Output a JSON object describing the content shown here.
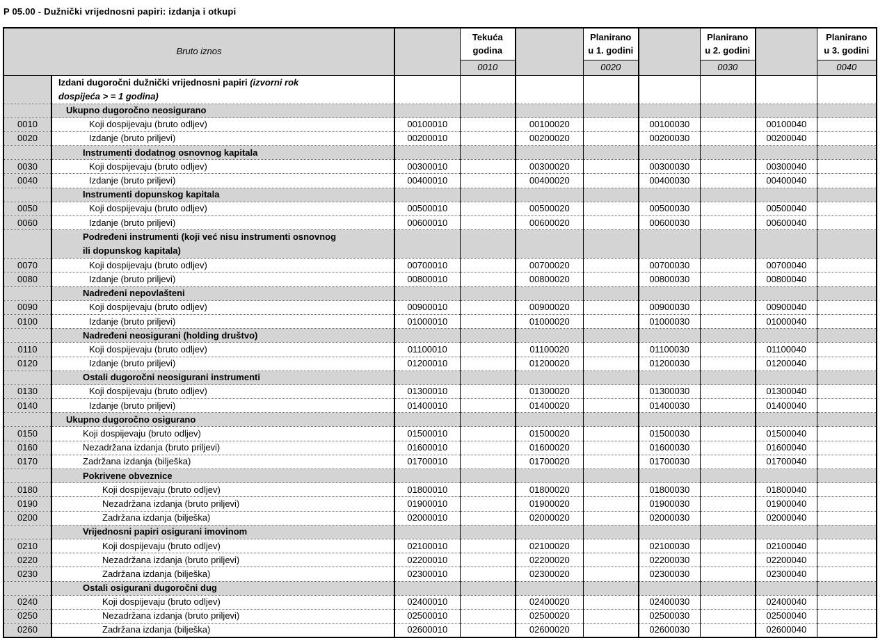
{
  "title": "P 05.00 - Dužnički vrijednosni papiri: izdanja i otkupi",
  "header": {
    "corner_label": "Bruto iznos",
    "columns": [
      {
        "line1": "Tekuća",
        "line2": "godina",
        "code": "0010"
      },
      {
        "line1": "Planirano",
        "line2": "u 1. godini",
        "code": "0020"
      },
      {
        "line1": "Planirano",
        "line2": "u 2. godini",
        "code": "0030"
      },
      {
        "line1": "Planirano",
        "line2": "u 3. godini",
        "code": "0040"
      }
    ]
  },
  "colors": {
    "shade": "#d4d4d4",
    "border": "#000000",
    "background": "#ffffff"
  },
  "rows": [
    {
      "type": "section",
      "code": "",
      "indent": 1,
      "lines": 2,
      "shaded": false,
      "label": "Izdani dugoročni dužnički vrijednosni papiri ",
      "label_italic": "(izvorni rok",
      "label2_italic": "dospijeća > = 1 godina)",
      "cells": [
        "",
        "",
        "",
        ""
      ]
    },
    {
      "type": "section",
      "code": "",
      "indent": 2,
      "lines": 1,
      "shaded": true,
      "label": "Ukupno dugoročno neosigurano",
      "cells": [
        "",
        "",
        "",
        ""
      ]
    },
    {
      "type": "data",
      "code": "0010",
      "indent": 4,
      "lines": 1,
      "shaded": false,
      "label": "Koji dospijevaju (bruto odljev)",
      "cells": [
        "00100010",
        "00100020",
        "00100030",
        "00100040"
      ]
    },
    {
      "type": "data",
      "code": "0020",
      "indent": 4,
      "lines": 1,
      "shaded": false,
      "label": "Izdanje (bruto priljevi)",
      "cells": [
        "00200010",
        "00200020",
        "00200030",
        "00200040"
      ]
    },
    {
      "type": "section",
      "code": "",
      "indent": 3,
      "lines": 1,
      "shaded": true,
      "label": "Instrumenti dodatnog osnovnog kapitala",
      "cells": [
        "",
        "",
        "",
        ""
      ]
    },
    {
      "type": "data",
      "code": "0030",
      "indent": 4,
      "lines": 1,
      "shaded": false,
      "label": "Koji dospijevaju (bruto odljev)",
      "cells": [
        "00300010",
        "00300020",
        "00300030",
        "00300040"
      ]
    },
    {
      "type": "data",
      "code": "0040",
      "indent": 4,
      "lines": 1,
      "shaded": false,
      "label": "Izdanje (bruto priljevi)",
      "cells": [
        "00400010",
        "00400020",
        "00400030",
        "00400040"
      ]
    },
    {
      "type": "section",
      "code": "",
      "indent": 3,
      "lines": 1,
      "shaded": true,
      "label": "Instrumenti dopunskog kapitala",
      "cells": [
        "",
        "",
        "",
        ""
      ]
    },
    {
      "type": "data",
      "code": "0050",
      "indent": 4,
      "lines": 1,
      "shaded": false,
      "label": "Koji dospijevaju (bruto odljev)",
      "cells": [
        "00500010",
        "00500020",
        "00500030",
        "00500040"
      ]
    },
    {
      "type": "data",
      "code": "0060",
      "indent": 4,
      "lines": 1,
      "shaded": false,
      "label": "Izdanje (bruto priljevi)",
      "cells": [
        "00600010",
        "00600020",
        "00600030",
        "00600040"
      ]
    },
    {
      "type": "section",
      "code": "",
      "indent": 3,
      "lines": 2,
      "shaded": true,
      "label": "Podređeni instrumenti (koji već nisu instrumenti osnovnog",
      "label2": "ili dopunskog kapitala)",
      "cells": [
        "",
        "",
        "",
        ""
      ]
    },
    {
      "type": "data",
      "code": "0070",
      "indent": 4,
      "lines": 1,
      "shaded": false,
      "label": "Koji dospijevaju (bruto odljev)",
      "cells": [
        "00700010",
        "00700020",
        "00700030",
        "00700040"
      ]
    },
    {
      "type": "data",
      "code": "0080",
      "indent": 4,
      "lines": 1,
      "shaded": false,
      "label": "Izdanje (bruto priljevi)",
      "cells": [
        "00800010",
        "00800020",
        "00800030",
        "00800040"
      ]
    },
    {
      "type": "section",
      "code": "",
      "indent": 3,
      "lines": 1,
      "shaded": true,
      "label": "Nadređeni nepovlašteni",
      "cells": [
        "",
        "",
        "",
        ""
      ]
    },
    {
      "type": "data",
      "code": "0090",
      "indent": 4,
      "lines": 1,
      "shaded": false,
      "label": "Koji dospijevaju (bruto odljev)",
      "cells": [
        "00900010",
        "00900020",
        "00900030",
        "00900040"
      ]
    },
    {
      "type": "data",
      "code": "0100",
      "indent": 4,
      "lines": 1,
      "shaded": false,
      "label": "Izdanje (bruto priljevi)",
      "cells": [
        "01000010",
        "01000020",
        "01000030",
        "01000040"
      ]
    },
    {
      "type": "section",
      "code": "",
      "indent": 3,
      "lines": 1,
      "shaded": true,
      "label": "Nadređeni neosigurani (holding društvo)",
      "cells": [
        "",
        "",
        "",
        ""
      ]
    },
    {
      "type": "data",
      "code": "0110",
      "indent": 4,
      "lines": 1,
      "shaded": false,
      "label": "Koji dospijevaju (bruto odljev)",
      "cells": [
        "01100010",
        "01100020",
        "01100030",
        "01100040"
      ]
    },
    {
      "type": "data",
      "code": "0120",
      "indent": 4,
      "lines": 1,
      "shaded": false,
      "label": "Izdanje (bruto priljevi)",
      "cells": [
        "01200010",
        "01200020",
        "01200030",
        "01200040"
      ]
    },
    {
      "type": "section",
      "code": "",
      "indent": 3,
      "lines": 1,
      "shaded": true,
      "label": "Ostali dugoročni neosigurani instrumenti",
      "cells": [
        "",
        "",
        "",
        ""
      ]
    },
    {
      "type": "data",
      "code": "0130",
      "indent": 4,
      "lines": 1,
      "shaded": false,
      "label": "Koji dospijevaju (bruto odljev)",
      "cells": [
        "01300010",
        "01300020",
        "01300030",
        "01300040"
      ]
    },
    {
      "type": "data",
      "code": "0140",
      "indent": 4,
      "lines": 1,
      "shaded": false,
      "label": "Izdanje (bruto priljevi)",
      "cells": [
        "01400010",
        "01400020",
        "01400030",
        "01400040"
      ]
    },
    {
      "type": "section",
      "code": "",
      "indent": 2,
      "lines": 1,
      "shaded": true,
      "label": "Ukupno dugoročno osigurano",
      "cells": [
        "",
        "",
        "",
        ""
      ]
    },
    {
      "type": "data",
      "code": "0150",
      "indent": 3,
      "lines": 1,
      "shaded": false,
      "label": "Koji dospijevaju (bruto odljev)",
      "cells": [
        "01500010",
        "01500020",
        "01500030",
        "01500040"
      ]
    },
    {
      "type": "data",
      "code": "0160",
      "indent": 3,
      "lines": 1,
      "shaded": false,
      "label": "Nezadržana izdanja (bruto priljevi)",
      "cells": [
        "01600010",
        "01600020",
        "01600030",
        "01600040"
      ]
    },
    {
      "type": "data",
      "code": "0170",
      "indent": 3,
      "lines": 1,
      "shaded": false,
      "label": "Zadržana izdanja (bilješka)",
      "cells": [
        "01700010",
        "01700020",
        "01700030",
        "01700040"
      ]
    },
    {
      "type": "section",
      "code": "",
      "indent": 3,
      "lines": 1,
      "shaded": true,
      "label": "Pokrivene obveznice",
      "cells": [
        "",
        "",
        "",
        ""
      ]
    },
    {
      "type": "data",
      "code": "0180",
      "indent": 5,
      "lines": 1,
      "shaded": false,
      "label": "Koji dospijevaju (bruto odljev)",
      "cells": [
        "01800010",
        "01800020",
        "01800030",
        "01800040"
      ]
    },
    {
      "type": "data",
      "code": "0190",
      "indent": 5,
      "lines": 1,
      "shaded": false,
      "label": "Nezadržana izdanja (bruto priljevi)",
      "cells": [
        "01900010",
        "01900020",
        "01900030",
        "01900040"
      ]
    },
    {
      "type": "data",
      "code": "0200",
      "indent": 5,
      "lines": 1,
      "shaded": false,
      "label": "Zadržana izdanja (bilješka)",
      "cells": [
        "02000010",
        "02000020",
        "02000030",
        "02000040"
      ]
    },
    {
      "type": "section",
      "code": "",
      "indent": 3,
      "lines": 1,
      "shaded": true,
      "label": "Vrijednosni papiri osigurani imovinom",
      "cells": [
        "",
        "",
        "",
        ""
      ]
    },
    {
      "type": "data",
      "code": "0210",
      "indent": 5,
      "lines": 1,
      "shaded": false,
      "label": "Koji dospijevaju (bruto odljev)",
      "cells": [
        "02100010",
        "02100020",
        "02100030",
        "02100040"
      ]
    },
    {
      "type": "data",
      "code": "0220",
      "indent": 5,
      "lines": 1,
      "shaded": false,
      "label": "Nezadržana izdanja (bruto priljevi)",
      "cells": [
        "02200010",
        "02200020",
        "02200030",
        "02200040"
      ]
    },
    {
      "type": "data",
      "code": "0230",
      "indent": 5,
      "lines": 1,
      "shaded": false,
      "label": "Zadržana izdanja (bilješka)",
      "cells": [
        "02300010",
        "02300020",
        "02300030",
        "02300040"
      ]
    },
    {
      "type": "section",
      "code": "",
      "indent": 3,
      "lines": 1,
      "shaded": true,
      "label": "Ostali osigurani dugoročni dug",
      "cells": [
        "",
        "",
        "",
        ""
      ]
    },
    {
      "type": "data",
      "code": "0240",
      "indent": 5,
      "lines": 1,
      "shaded": false,
      "label": "Koji dospijevaju (bruto odljev)",
      "cells": [
        "02400010",
        "02400020",
        "02400030",
        "02400040"
      ]
    },
    {
      "type": "data",
      "code": "0250",
      "indent": 5,
      "lines": 1,
      "shaded": false,
      "label": "Nezadržana izdanja (bruto priljevi)",
      "cells": [
        "02500010",
        "02500020",
        "02500030",
        "02500040"
      ]
    },
    {
      "type": "data",
      "code": "0260",
      "indent": 5,
      "lines": 1,
      "shaded": false,
      "label": "Zadržana izdanja (bilješka)",
      "cells": [
        "02600010",
        "02600020",
        "02600030",
        "02600040"
      ]
    }
  ]
}
